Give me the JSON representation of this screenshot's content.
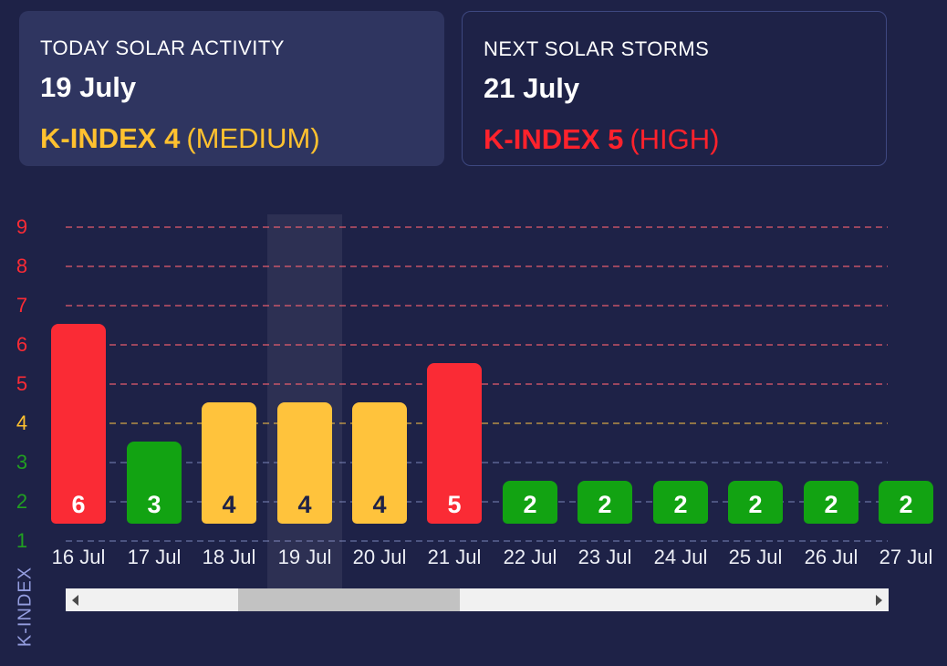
{
  "cards": {
    "today": {
      "title": "TODAY SOLAR ACTIVITY",
      "date": "19 July",
      "kindex": "K-INDEX 4",
      "level": "(MEDIUM)",
      "accent_color": "#FFC12F"
    },
    "next": {
      "title": "NEXT SOLAR STORMS",
      "date": "21 July",
      "kindex": "K-INDEX 5",
      "level": "(HIGH)",
      "accent_color": "#FF222C"
    }
  },
  "chart_data": {
    "type": "bar",
    "title": "",
    "xlabel": "",
    "ylabel": "K-INDEX",
    "categories": [
      "16 Jul",
      "17 Jul",
      "18 Jul",
      "19 Jul",
      "20 Jul",
      "21 Jul",
      "22 Jul",
      "23 Jul",
      "24 Jul",
      "25 Jul",
      "26 Jul",
      "27 Jul"
    ],
    "values": [
      6,
      3,
      4,
      4,
      4,
      5,
      2,
      2,
      2,
      2,
      2,
      2
    ],
    "yticks": [
      1,
      2,
      3,
      4,
      5,
      6,
      7,
      8,
      9
    ],
    "ylim": [
      1,
      9
    ],
    "grid": "horizontal-dashed",
    "legend": "none",
    "highlighted_category": "19 Jul",
    "severity": {
      "low_max": 3,
      "medium_max": 4
    }
  },
  "chart_style": {
    "bar_colors": {
      "low": "#12A312",
      "medium": "#FFC33C",
      "high": "#FA2B35"
    },
    "tick_colors": {
      "low": "#21A021",
      "medium": "#FFC12F",
      "high": "#FA2B35"
    },
    "grid_colors": {
      "low": "rgba(152,164,220,0.38)",
      "medium": "rgba(255,197,70,0.5)",
      "high": "rgba(255,99,112,0.55)"
    },
    "value_label_on_medium": "#1E2247",
    "value_label_default": "#FFFFFF",
    "highlight_band_color": "rgba(255,255,255,0.065)"
  }
}
